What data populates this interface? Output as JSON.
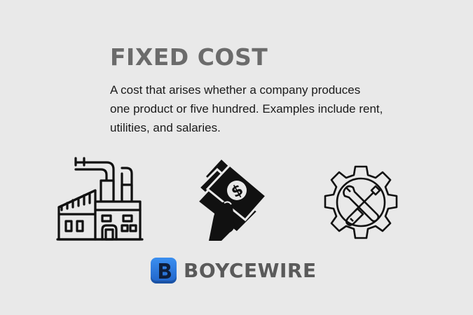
{
  "header": {
    "title": "FIXED COST",
    "description": "A cost that arises whether a company produces one product or five hundred. Examples include rent, utilities, and salaries."
  },
  "icons": [
    "factory-icon",
    "money-hand-icon",
    "gear-tools-icon"
  ],
  "brand": {
    "name": "BOYCEWIRE",
    "logo_color": "#2a74dd",
    "text_color": "#5a5a5a"
  },
  "colors": {
    "background": "#e9e9e9",
    "title": "#6b6b6b"
  }
}
